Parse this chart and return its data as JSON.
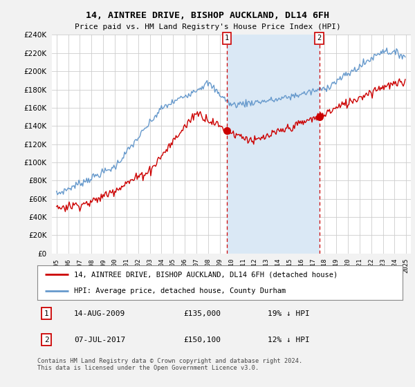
{
  "title": "14, AINTREE DRIVE, BISHOP AUCKLAND, DL14 6FH",
  "subtitle": "Price paid vs. HM Land Registry's House Price Index (HPI)",
  "ylim": [
    0,
    240000
  ],
  "ytick_values": [
    0,
    20000,
    40000,
    60000,
    80000,
    100000,
    120000,
    140000,
    160000,
    180000,
    200000,
    220000,
    240000
  ],
  "legend_line1": "14, AINTREE DRIVE, BISHOP AUCKLAND, DL14 6FH (detached house)",
  "legend_line2": "HPI: Average price, detached house, County Durham",
  "annotation1_date": "14-AUG-2009",
  "annotation1_price": "£135,000",
  "annotation1_hpi": "19% ↓ HPI",
  "annotation1_price_val": 135000,
  "annotation2_date": "07-JUL-2017",
  "annotation2_price": "£150,100",
  "annotation2_hpi": "12% ↓ HPI",
  "annotation2_price_val": 150100,
  "footnote": "Contains HM Land Registry data © Crown copyright and database right 2024.\nThis data is licensed under the Open Government Licence v3.0.",
  "background_color": "#f2f2f2",
  "plot_background": "#ffffff",
  "hpi_color": "#6699cc",
  "hpi_fill_color": "#dae8f5",
  "price_color": "#cc0000",
  "vline_color": "#cc0000",
  "grid_color": "#cccccc",
  "sale1_year_float": 2009.625,
  "sale2_year_float": 2017.542,
  "xmin": 1994.6,
  "xmax": 2025.4
}
